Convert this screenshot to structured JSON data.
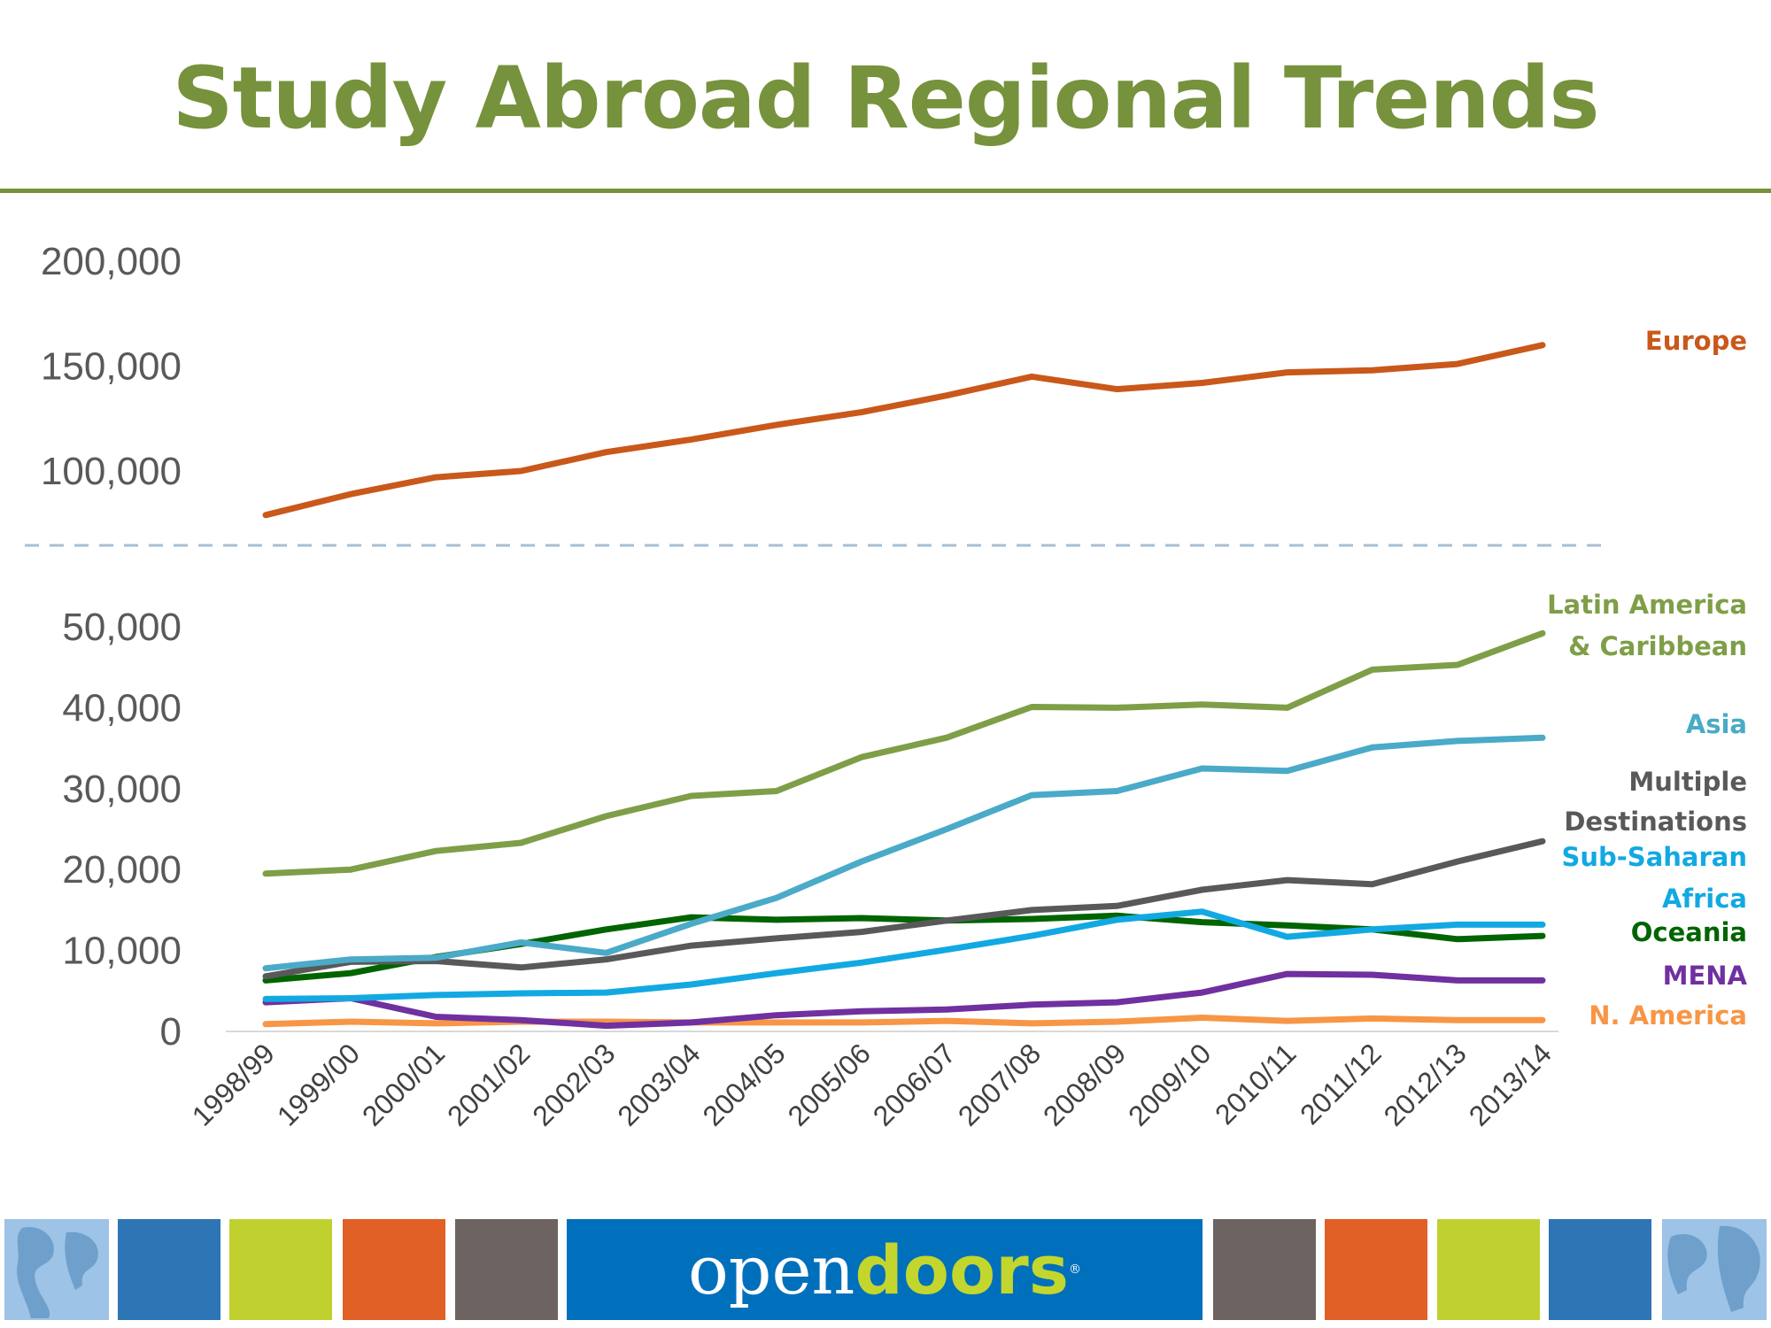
{
  "title": "Study Abroad Regional Trends",
  "chart_data": {
    "type": "line",
    "categories": [
      "1998/99",
      "1999/00",
      "2000/01",
      "2001/02",
      "2002/03",
      "2003/04",
      "2004/05",
      "2005/06",
      "2006/07",
      "2007/08",
      "2008/09",
      "2009/10",
      "2010/11",
      "2011/12",
      "2012/13",
      "2013/14"
    ],
    "upper_panel": {
      "ylim": [
        80000,
        200000
      ],
      "yticks": [
        "200,000",
        "150,000",
        "100,000"
      ],
      "ytick_values": [
        200000,
        150000,
        100000
      ]
    },
    "lower_panel": {
      "ylim": [
        0,
        55000
      ],
      "yticks": [
        "50,000",
        "40,000",
        "30,000",
        "20,000",
        "10,000",
        "0"
      ],
      "ytick_values": [
        50000,
        40000,
        30000,
        20000,
        10000,
        0
      ]
    },
    "grid": false,
    "legend": "right-side direct labels",
    "series": [
      {
        "name": "Europe",
        "panel": "upper",
        "color": "#c9581a",
        "values": [
          79000,
          89000,
          97000,
          100000,
          109000,
          115000,
          122000,
          128000,
          136000,
          145000,
          139000,
          142000,
          147000,
          148000,
          151000,
          160000
        ]
      },
      {
        "name": "Latin America & Caribbean",
        "label_lines": [
          "Latin America",
          "& Caribbean"
        ],
        "panel": "lower",
        "color": "#7f9e48",
        "values": [
          19500,
          20000,
          22300,
          23300,
          26600,
          29100,
          29700,
          33900,
          36300,
          40100,
          40000,
          40400,
          40000,
          44700,
          45300,
          49200
        ]
      },
      {
        "name": "Asia",
        "panel": "lower",
        "color": "#4aaac8",
        "values": [
          7800,
          8900,
          9100,
          11000,
          9700,
          13300,
          16500,
          21000,
          25000,
          29200,
          29700,
          32500,
          32200,
          35100,
          35900,
          36300
        ]
      },
      {
        "name": "Multiple Destinations",
        "label_lines": [
          "Multiple",
          "Destinations"
        ],
        "panel": "lower",
        "color": "#595959",
        "values": [
          6800,
          8600,
          8700,
          7900,
          8900,
          10600,
          11500,
          12300,
          13700,
          15000,
          15500,
          17500,
          18700,
          18200,
          21000,
          23500
        ]
      },
      {
        "name": "Sub-Saharan Africa",
        "label_lines": [
          "Sub-Saharan",
          "Africa"
        ],
        "panel": "lower",
        "color": "#12a9e2",
        "values": [
          4000,
          4100,
          4500,
          4700,
          4800,
          5800,
          7200,
          8500,
          10100,
          11800,
          13800,
          14800,
          11700,
          12600,
          13200,
          13200
        ]
      },
      {
        "name": "Oceania",
        "panel": "lower",
        "color": "#006400",
        "values": [
          6300,
          7200,
          9200,
          10800,
          12600,
          14100,
          13800,
          14000,
          13700,
          13900,
          14300,
          13500,
          13100,
          12600,
          11400,
          11800
        ]
      },
      {
        "name": "MENA",
        "panel": "lower",
        "color": "#7030a0",
        "values": [
          3600,
          4100,
          1800,
          1400,
          700,
          1100,
          2000,
          2500,
          2700,
          3300,
          3600,
          4800,
          7100,
          7000,
          6300,
          6300
        ]
      },
      {
        "name": "N. America",
        "panel": "lower",
        "color": "#f79646",
        "values": [
          900,
          1200,
          1000,
          1200,
          1200,
          1100,
          1100,
          1100,
          1300,
          1000,
          1200,
          1700,
          1300,
          1600,
          1400,
          1400
        ]
      }
    ]
  },
  "footer": {
    "logo_open": "open",
    "logo_doors": "doors",
    "logo_mark": "®",
    "tile_colors": [
      "#2e75b6",
      "#c0d12f",
      "#e06026",
      "#6d6361",
      "#0070bd",
      "#6d6361",
      "#e06026",
      "#c0d12f",
      "#2e75b6"
    ]
  }
}
